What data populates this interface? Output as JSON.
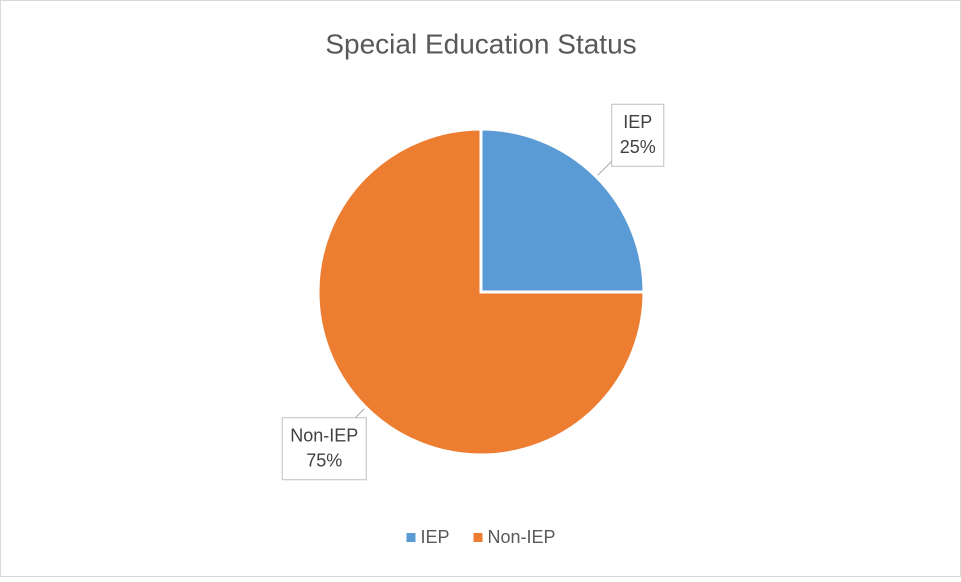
{
  "chart_data": {
    "type": "pie",
    "title": "Special Education Status",
    "categories": [
      "IEP",
      "Non-IEP"
    ],
    "values": [
      25,
      75
    ],
    "value_labels": [
      "25%",
      "75%"
    ],
    "colors": [
      "#5b9bd5",
      "#ed7d31"
    ],
    "legend": "bottom"
  }
}
